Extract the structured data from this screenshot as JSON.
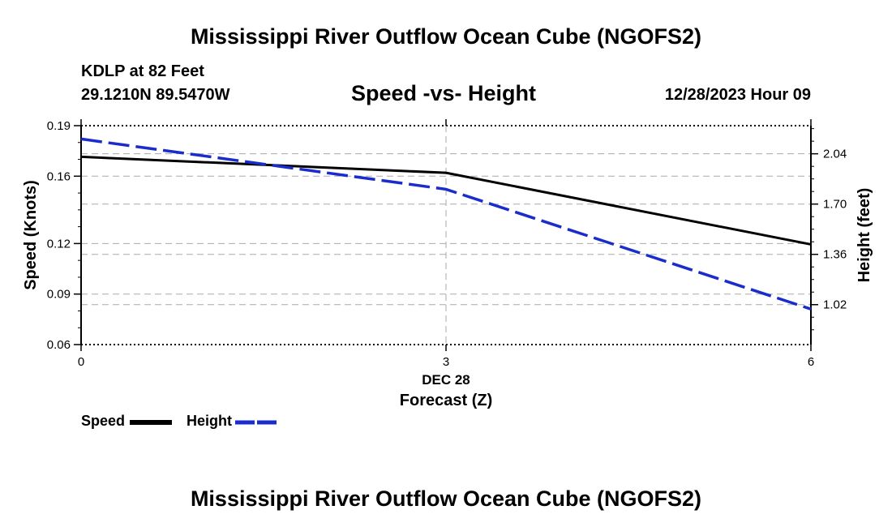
{
  "page": {
    "main_title": "Mississippi River Outflow Ocean Cube (NGOFS2)",
    "station_label": "KDLP at 82 Feet",
    "coordinates": "29.1210N  89.5470W",
    "date_label": "12/28/2023 Hour 09",
    "second_title": "Mississippi River Outflow Ocean Cube (NGOFS2)"
  },
  "chart_data": {
    "type": "line",
    "title": "Speed -vs- Height",
    "xlabel": "Forecast (Z)",
    "x_date_label": "DEC 28",
    "ylabel": "Speed (Knots)",
    "y2label": "Height (feet)",
    "x": [
      0,
      3,
      6
    ],
    "xlim": [
      0,
      6
    ],
    "x_ticks": [
      "0",
      "3",
      "6"
    ],
    "ylim": [
      0.06,
      0.19
    ],
    "y_ticks": [
      "0.19",
      "0.16",
      "0.12",
      "0.09",
      "0.06"
    ],
    "y_tick_values": [
      0.19,
      0.16,
      0.12,
      0.09,
      0.06
    ],
    "y2lim": [
      0.75,
      2.23
    ],
    "y2_ticks": [
      "2.04",
      "1.70",
      "1.36",
      "1.02"
    ],
    "y2_tick_values": [
      2.04,
      1.7,
      1.36,
      1.02
    ],
    "series": [
      {
        "name": "Speed",
        "axis": "left",
        "values": [
          0.1715,
          0.162,
          0.1195
        ],
        "color": "#000000",
        "dash": "solid"
      },
      {
        "name": "Height",
        "axis": "right",
        "values": [
          2.14,
          1.8,
          0.99
        ],
        "color": "#1a2ccc",
        "dash": "dashed"
      }
    ],
    "legend": [
      {
        "label": "Speed"
      },
      {
        "label": "Height"
      }
    ],
    "grid": true
  }
}
